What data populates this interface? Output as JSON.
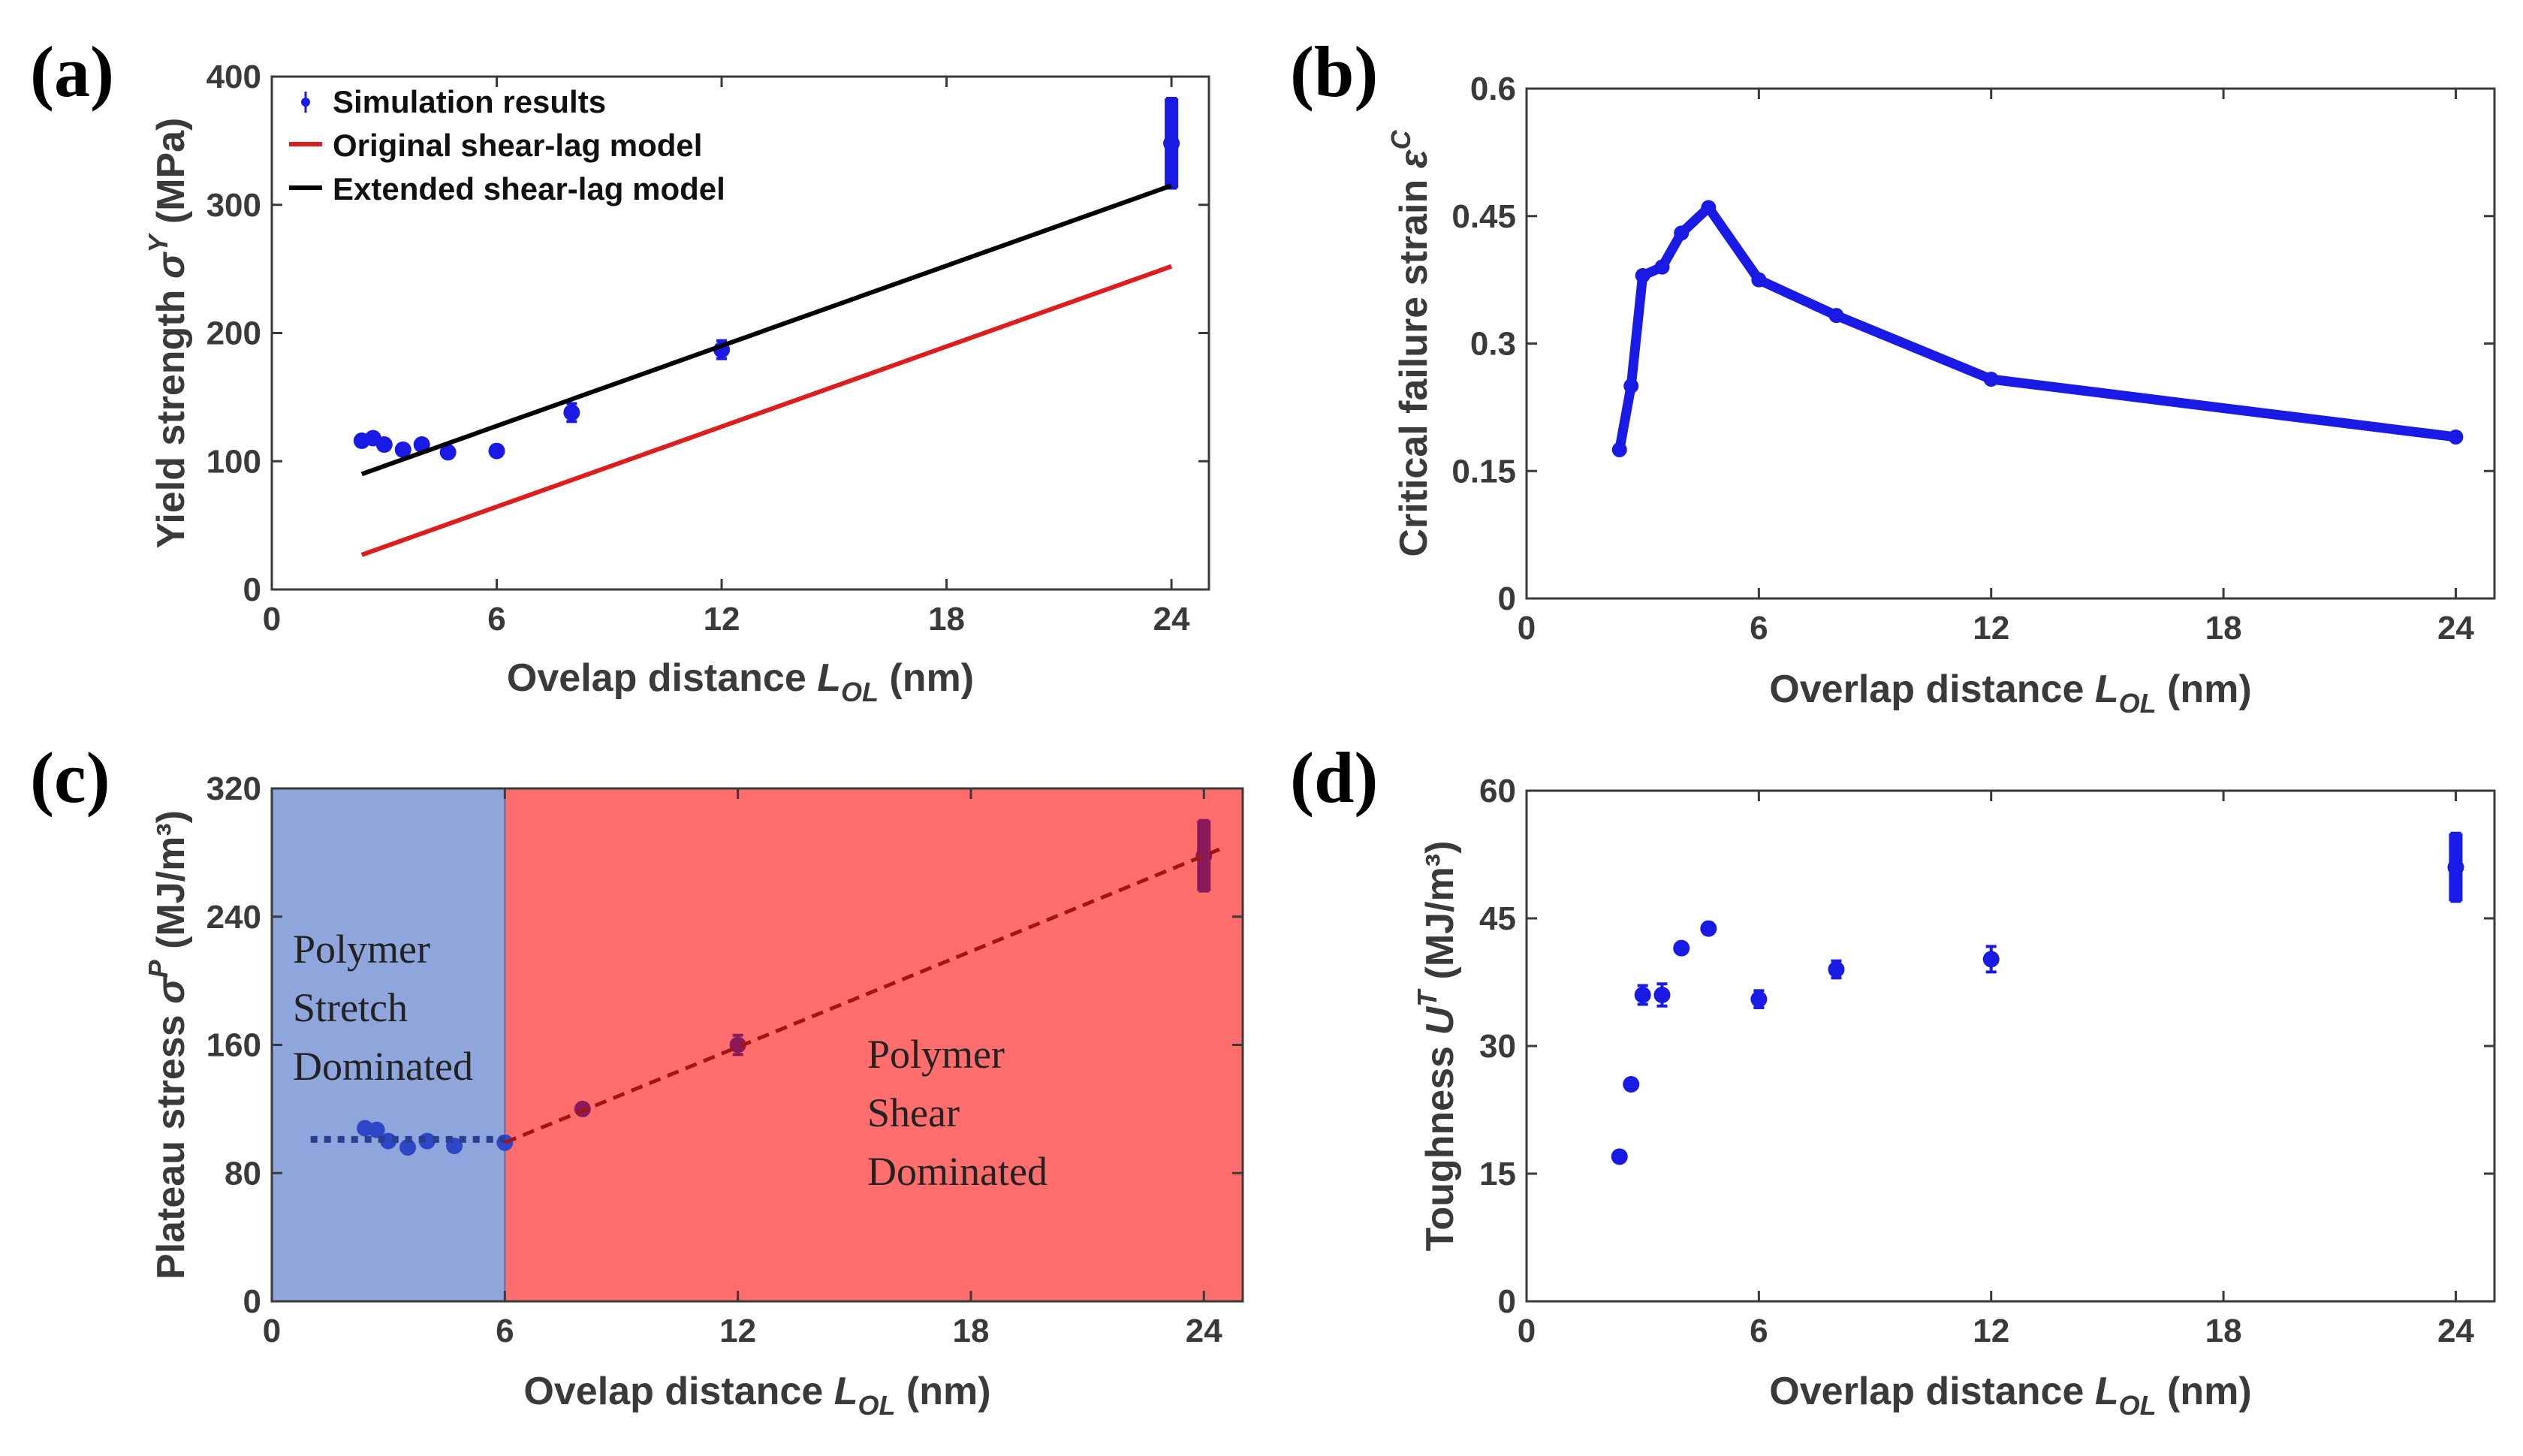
{
  "colors": {
    "sim": "#1a1ae6",
    "original_model": "#dd1e1e",
    "extended_model": "#000000",
    "stretch_region": "#8ea6dc",
    "shear_region": "#ff6d6d",
    "fit_line": "#a01616",
    "axis": "#3a3a3a"
  },
  "chart_data": [
    {
      "panel": "(a)",
      "type": "scatter",
      "xlabel": {
        "pre": "Ovelap distance ",
        "var": "L",
        "sub": "OL",
        "post": " (nm)"
      },
      "ylabel": {
        "pre": "Yield strength ",
        "var": "σ",
        "sup": "Y",
        "post": " (MPa)"
      },
      "xlim": [
        0,
        25
      ],
      "ylim": [
        0,
        400
      ],
      "xticks": [
        0,
        6,
        12,
        18,
        24
      ],
      "yticks": [
        0,
        100,
        200,
        300,
        400
      ],
      "legend": [
        "Simulation results",
        "Original shear-lag model",
        "Extended shear-lag model"
      ],
      "legend_position": "top-left",
      "series": [
        {
          "name": "Simulation results",
          "kind": "points",
          "x": [
            2.4,
            2.7,
            3.0,
            3.5,
            4.0,
            4.7,
            6.0,
            8.0,
            12.0,
            24.0
          ],
          "y": [
            116,
            118,
            113,
            109,
            113,
            107,
            108,
            138,
            187,
            348
          ],
          "err": [
            4,
            4,
            4,
            4,
            4,
            4,
            4,
            7,
            7,
            35
          ]
        },
        {
          "name": "Original shear-lag model",
          "kind": "line",
          "x": [
            2.4,
            24.0
          ],
          "y": [
            27,
            252
          ]
        },
        {
          "name": "Extended shear-lag model",
          "kind": "line",
          "x": [
            2.4,
            24.0
          ],
          "y": [
            90,
            315
          ]
        }
      ]
    },
    {
      "panel": "(b)",
      "type": "line",
      "xlabel": {
        "pre": "Overlap distance ",
        "var": "L",
        "sub": "OL",
        "post": " (nm)"
      },
      "ylabel": {
        "pre": "Critical failure strain ",
        "var": "ε",
        "sup": "C",
        "post": ""
      },
      "xlim": [
        0,
        25
      ],
      "ylim": [
        0,
        0.6
      ],
      "xticks": [
        0,
        6,
        12,
        18,
        24
      ],
      "yticks": [
        0,
        0.15,
        0.3,
        0.45,
        0.6
      ],
      "ytick_labels": [
        "0",
        "0.15",
        "0.3",
        "0.45",
        "0.6"
      ],
      "series": [
        {
          "name": "Critical failure strain",
          "kind": "line-markers",
          "x": [
            2.4,
            2.7,
            3.0,
            3.5,
            4.0,
            4.7,
            6.0,
            8.0,
            12.0,
            24.0
          ],
          "y": [
            0.175,
            0.25,
            0.38,
            0.39,
            0.43,
            0.46,
            0.375,
            0.333,
            0.258,
            0.19
          ]
        }
      ]
    },
    {
      "panel": "(c)",
      "type": "scatter",
      "xlabel": {
        "pre": "Ovelap distance ",
        "var": "L",
        "sub": "OL",
        "post": " (nm)"
      },
      "ylabel": {
        "pre": "Plateau stress ",
        "var": "σ",
        "sup": "P",
        "post": " (MJ/m³)"
      },
      "xlim": [
        0,
        25
      ],
      "ylim": [
        0,
        320
      ],
      "xticks": [
        0,
        6,
        12,
        18,
        24
      ],
      "yticks": [
        0,
        80,
        160,
        240,
        320
      ],
      "boundary_x": 6,
      "regions": [
        {
          "lines": [
            "Polymer",
            "Stretch",
            "Dominated"
          ],
          "x_range": [
            0,
            6
          ]
        },
        {
          "lines": [
            "Polymer",
            "Shear",
            "Dominated"
          ],
          "x_range": [
            6,
            25
          ]
        }
      ],
      "series": [
        {
          "name": "Plateau stress",
          "kind": "points",
          "x": [
            2.4,
            2.7,
            3.0,
            3.5,
            4.0,
            4.7,
            6.0,
            8.0,
            12.0,
            24.0
          ],
          "y": [
            108,
            107,
            100,
            96,
            100,
            97,
            99,
            120,
            160,
            278
          ],
          "err": [
            3,
            3,
            3,
            3,
            3,
            3,
            3,
            3,
            6,
            22
          ]
        },
        {
          "name": "Stretch fit",
          "kind": "dotted-line",
          "x": [
            1.0,
            6.0
          ],
          "y": [
            101,
            101
          ]
        },
        {
          "name": "Shear fit",
          "kind": "dashed-line",
          "x": [
            6.0,
            24.4
          ],
          "y": [
            99,
            282
          ]
        }
      ]
    },
    {
      "panel": "(d)",
      "type": "scatter",
      "xlabel": {
        "pre": "Overlap distance ",
        "var": "L",
        "sub": "OL",
        "post": " (nm)"
      },
      "ylabel": {
        "pre": "Toughness ",
        "var": "U",
        "sup": "T",
        "post": " (MJ/m³)"
      },
      "xlim": [
        0,
        25
      ],
      "ylim": [
        0,
        60
      ],
      "xticks": [
        0,
        6,
        12,
        18,
        24
      ],
      "yticks": [
        0,
        15,
        30,
        45,
        60
      ],
      "series": [
        {
          "name": "Toughness",
          "kind": "points",
          "x": [
            2.4,
            2.7,
            3.0,
            3.5,
            4.0,
            4.7,
            6.0,
            8.0,
            12.0,
            24.0
          ],
          "y": [
            17,
            25.5,
            36,
            36,
            41.5,
            43.8,
            35.5,
            39,
            40.2,
            51
          ],
          "err": [
            0.6,
            0.6,
            1.1,
            1.3,
            0.6,
            0.6,
            1.0,
            1.0,
            1.5,
            4.0
          ]
        }
      ]
    }
  ]
}
